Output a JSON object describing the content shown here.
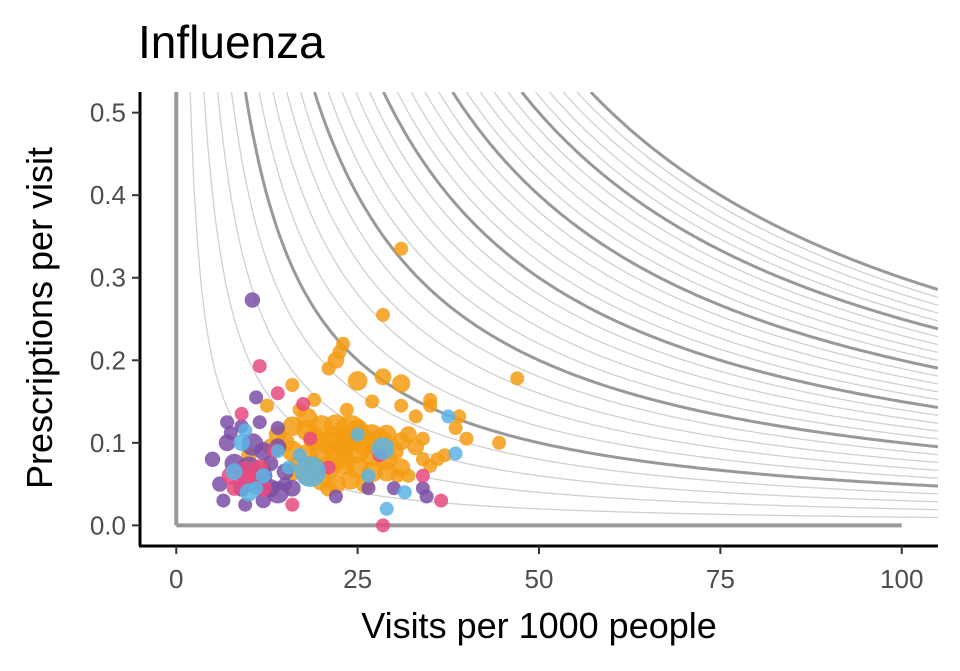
{
  "chart_data": {
    "type": "scatter",
    "title": "Influenza",
    "xlabel": "Visits per 1000 people",
    "ylabel": "Prescriptions per visit",
    "xlim": [
      -5,
      105
    ],
    "ylim": [
      -0.025,
      0.525
    ],
    "x_ticks": [
      0,
      25,
      50,
      75,
      100
    ],
    "x_tick_labels": [
      "0",
      "25",
      "50",
      "75",
      "100"
    ],
    "y_ticks": [
      0,
      0.1,
      0.2,
      0.3,
      0.4,
      0.5
    ],
    "y_tick_labels": [
      "0.0",
      "0.1",
      "0.2",
      "0.3",
      "0.4",
      "0.5"
    ],
    "grid": false,
    "legend": "none",
    "reference_lines": {
      "color": "#999999",
      "x_line": {
        "x": 0,
        "y_range": [
          0,
          0.525
        ]
      },
      "y_line": {
        "y": 0,
        "x_range": [
          0,
          100
        ]
      }
    },
    "iso_curves": {
      "description": "hyperbolas x*y = k (prescriptions per 1000 people)",
      "color_thin": "#d0d0d0",
      "color_thick": "#999999",
      "thin_k": [
        1,
        2,
        3,
        4,
        6,
        7,
        8,
        9,
        11,
        12,
        13,
        14,
        16,
        17,
        18,
        19,
        21,
        22,
        23,
        24,
        26,
        27,
        28,
        29
      ],
      "thick_k": [
        5,
        10,
        15,
        20,
        25,
        30
      ]
    },
    "series": [
      {
        "color": "#f39c12",
        "points": [
          [
            31,
            0.335,
            1
          ],
          [
            28.5,
            0.255,
            1
          ],
          [
            47,
            0.178,
            1
          ],
          [
            23,
            0.22,
            1
          ],
          [
            22.5,
            0.21,
            1
          ],
          [
            22,
            0.2,
            1.2
          ],
          [
            21,
            0.19,
            1
          ],
          [
            25,
            0.175,
            1.4
          ],
          [
            28.5,
            0.18,
            1.2
          ],
          [
            31,
            0.172,
            1.3
          ],
          [
            16,
            0.17,
            1
          ],
          [
            35,
            0.152,
            1
          ],
          [
            35,
            0.145,
            1
          ],
          [
            19,
            0.152,
            1
          ],
          [
            27,
            0.15,
            1
          ],
          [
            31,
            0.145,
            1
          ],
          [
            33,
            0.132,
            1
          ],
          [
            39,
            0.132,
            1
          ],
          [
            23.5,
            0.14,
            1
          ],
          [
            17,
            0.14,
            1
          ],
          [
            38.5,
            0.118,
            1
          ],
          [
            40,
            0.105,
            1
          ],
          [
            44.5,
            0.1,
            1
          ],
          [
            37,
            0.085,
            1
          ],
          [
            34,
            0.08,
            1
          ],
          [
            36,
            0.08,
            1
          ],
          [
            35,
            0.072,
            1
          ],
          [
            33,
            0.095,
            1.2
          ],
          [
            31,
            0.102,
            1.3
          ],
          [
            29,
            0.11,
            1.4
          ],
          [
            27,
            0.11,
            1.5
          ],
          [
            25,
            0.115,
            1.6
          ],
          [
            22,
            0.12,
            1.7
          ],
          [
            20,
            0.12,
            1.6
          ],
          [
            18,
            0.13,
            1.5
          ],
          [
            18,
            0.115,
            1.5
          ],
          [
            19,
            0.105,
            1.6
          ],
          [
            21,
            0.1,
            1.7
          ],
          [
            23,
            0.095,
            1.6
          ],
          [
            25,
            0.09,
            1.7
          ],
          [
            27,
            0.085,
            1.6
          ],
          [
            29,
            0.08,
            1.5
          ],
          [
            30,
            0.09,
            1.4
          ],
          [
            26,
            0.1,
            1.8
          ],
          [
            24,
            0.105,
            1.8
          ],
          [
            22,
            0.105,
            1.8
          ],
          [
            20,
            0.09,
            1.7
          ],
          [
            18,
            0.085,
            1.6
          ],
          [
            16,
            0.09,
            1.5
          ],
          [
            15,
            0.1,
            1.4
          ],
          [
            14,
            0.11,
            1.3
          ],
          [
            16,
            0.12,
            1.4
          ],
          [
            17,
            0.075,
            1.5
          ],
          [
            19,
            0.07,
            1.6
          ],
          [
            21,
            0.07,
            1.6
          ],
          [
            23,
            0.075,
            1.7
          ],
          [
            25,
            0.07,
            1.6
          ],
          [
            27,
            0.065,
            1.5
          ],
          [
            29,
            0.065,
            1.4
          ],
          [
            31,
            0.07,
            1.3
          ],
          [
            20,
            0.055,
            1.5
          ],
          [
            22,
            0.05,
            1.4
          ],
          [
            24,
            0.055,
            1.4
          ],
          [
            26,
            0.05,
            1.3
          ],
          [
            18,
            0.06,
            1.4
          ],
          [
            16,
            0.065,
            1.3
          ],
          [
            30.5,
            0.06,
            1
          ],
          [
            32,
            0.06,
            1
          ],
          [
            13,
            0.095,
            1.2
          ],
          [
            12,
            0.07,
            1.1
          ],
          [
            10,
            0.085,
            1.1
          ],
          [
            24,
            0.115,
            2.2
          ],
          [
            28,
            0.1,
            2
          ],
          [
            22.5,
            0.085,
            2
          ],
          [
            32,
            0.11,
            1.2
          ],
          [
            34,
            0.105,
            1
          ],
          [
            12.5,
            0.145,
            1
          ],
          [
            21,
            0.045,
            1.2
          ]
        ]
      },
      {
        "color": "#7b4fa6",
        "points": [
          [
            10.5,
            0.273,
            1.1
          ],
          [
            11,
            0.155,
            1
          ],
          [
            7,
            0.125,
            1
          ],
          [
            11.5,
            0.125,
            1
          ],
          [
            14,
            0.118,
            1
          ],
          [
            7,
            0.1,
            1.2
          ],
          [
            10.5,
            0.098,
            1.6
          ],
          [
            12,
            0.09,
            1.3
          ],
          [
            14,
            0.095,
            1.2
          ],
          [
            5,
            0.08,
            1.1
          ],
          [
            8,
            0.075,
            1.4
          ],
          [
            10,
            0.07,
            1.6
          ],
          [
            12,
            0.06,
            1.3
          ],
          [
            15,
            0.065,
            1.2
          ],
          [
            6,
            0.05,
            1.1
          ],
          [
            9,
            0.045,
            1.2
          ],
          [
            11,
            0.05,
            1.4
          ],
          [
            13,
            0.045,
            1.3
          ],
          [
            14,
            0.04,
            1.6
          ],
          [
            16,
            0.045,
            1.2
          ],
          [
            6.5,
            0.03,
            1
          ],
          [
            9.5,
            0.025,
            1
          ],
          [
            12,
            0.03,
            1.1
          ],
          [
            30,
            0.045,
            1
          ],
          [
            34,
            0.045,
            1
          ],
          [
            34.5,
            0.035,
            1
          ],
          [
            22,
            0.035,
            1
          ],
          [
            26.5,
            0.045,
            1
          ],
          [
            7.5,
            0.112,
            1
          ],
          [
            9,
            0.12,
            1
          ],
          [
            13,
            0.075,
            1.1
          ],
          [
            15,
            0.05,
            1
          ]
        ]
      },
      {
        "color": "#e84a7f",
        "points": [
          [
            11.5,
            0.193,
            1
          ],
          [
            17.5,
            0.147,
            1
          ],
          [
            14,
            0.16,
            1
          ],
          [
            9,
            0.135,
            1
          ],
          [
            8,
            0.045,
            1.1
          ],
          [
            7.5,
            0.06,
            1.3
          ],
          [
            9.5,
            0.065,
            1.5
          ],
          [
            11.5,
            0.07,
            1.2
          ],
          [
            10,
            0.055,
            1.6
          ],
          [
            12,
            0.045,
            1.2
          ],
          [
            16,
            0.025,
            1
          ],
          [
            18.5,
            0.105,
            1
          ],
          [
            36.5,
            0.03,
            1
          ],
          [
            28.5,
            0.0,
            1
          ],
          [
            28,
            0.085,
            1
          ],
          [
            13.5,
            0.09,
            1
          ],
          [
            21,
            0.07,
            1
          ],
          [
            34,
            0.06,
            1
          ]
        ]
      },
      {
        "color": "#5ab4e5",
        "points": [
          [
            37.5,
            0.132,
            1
          ],
          [
            38.5,
            0.087,
            1
          ],
          [
            9,
            0.1,
            1.2
          ],
          [
            9.5,
            0.115,
            1
          ],
          [
            8,
            0.065,
            1.2
          ],
          [
            10,
            0.04,
            1.3
          ],
          [
            12,
            0.06,
            1.1
          ],
          [
            15.5,
            0.07,
            1
          ],
          [
            17,
            0.085,
            1
          ],
          [
            18.5,
            0.065,
            2.2
          ],
          [
            29,
            0.02,
            1
          ],
          [
            31.5,
            0.04,
            1
          ],
          [
            28.5,
            0.093,
            1.6
          ],
          [
            25,
            0.11,
            1
          ],
          [
            26.5,
            0.06,
            1
          ],
          [
            14,
            0.09,
            1
          ],
          [
            11,
            0.045,
            1
          ]
        ]
      }
    ]
  }
}
